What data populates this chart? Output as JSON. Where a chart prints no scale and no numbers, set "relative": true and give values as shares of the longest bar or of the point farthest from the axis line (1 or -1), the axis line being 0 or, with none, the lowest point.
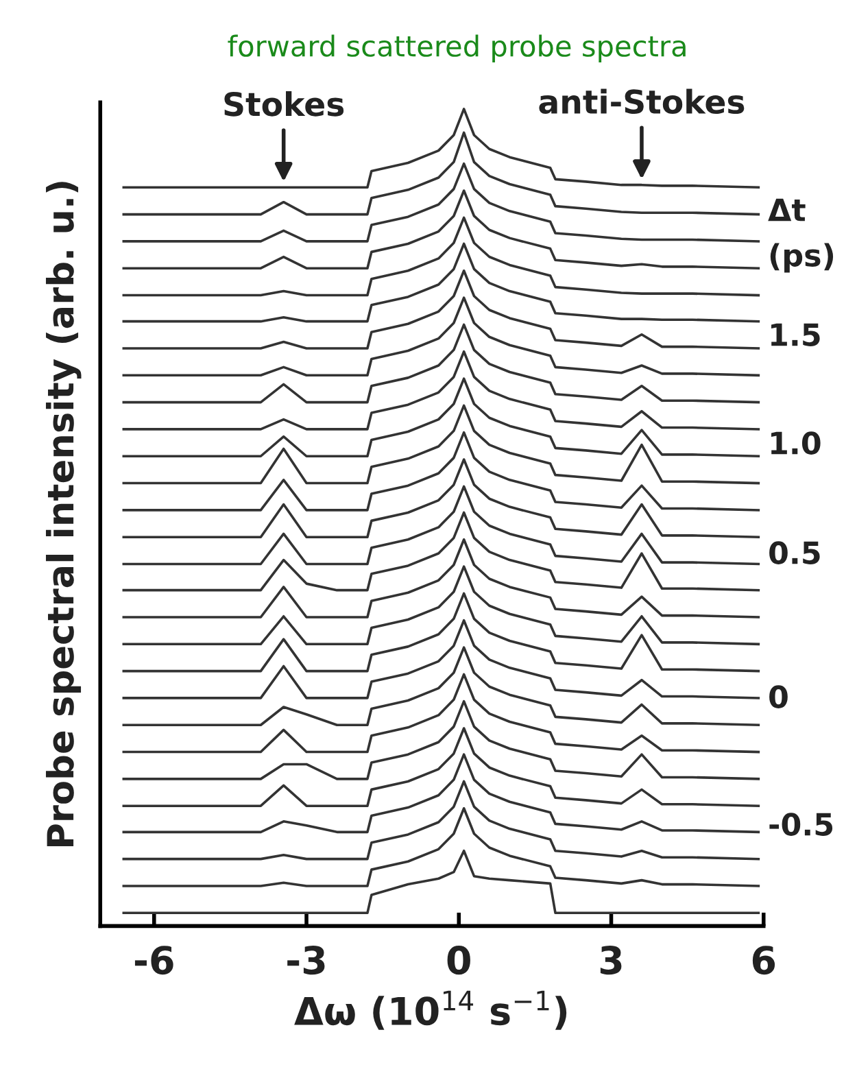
{
  "chart_data": {
    "type": "line",
    "title": "forward scattered probe spectra",
    "xlabel": "Δω (10$^{14}$ s$^{−1}$)",
    "ylabel": "Probe spectral intensity (arb. u.)",
    "relative": true,
    "x": [
      -6.6,
      -4.6,
      -3.9,
      -3.45,
      -3.0,
      -2.4,
      -1.8,
      -1.72,
      -1.0,
      -0.4,
      -0.1,
      0.1,
      0.3,
      0.6,
      1.0,
      1.8,
      1.9,
      2.5,
      3.2,
      3.6,
      4.0,
      4.6,
      5.9
    ],
    "xlim": [
      -7.06,
      6
    ],
    "xticks": [
      -6,
      -3,
      0,
      3,
      6
    ],
    "annotations": [
      {
        "text": "Stokes",
        "x": -3.45,
        "y": 0.904
      },
      {
        "text": "anti-Stokes",
        "x": 3.6,
        "y": 0.907
      },
      "Δt",
      "(ps)",
      "1.5",
      "1.0",
      "0.5",
      "0",
      "-0.5"
    ],
    "series": [
      {
        "color": "#333333",
        "values": [
          0.904,
          0.904,
          0.904,
          0.904,
          0.904,
          0.904,
          0.904,
          0.924,
          0.934,
          0.949,
          0.968,
          1.0,
          0.968,
          0.951,
          0.941,
          0.928,
          0.914,
          0.911,
          0.907,
          0.907,
          0.906,
          0.906,
          0.904
        ]
      },
      {
        "color": "#333333",
        "values": [
          0.871,
          0.871,
          0.871,
          0.886,
          0.871,
          0.871,
          0.871,
          0.891,
          0.901,
          0.916,
          0.935,
          0.971,
          0.935,
          0.918,
          0.908,
          0.895,
          0.881,
          0.878,
          0.874,
          0.873,
          0.873,
          0.873,
          0.871
        ]
      },
      {
        "color": "#333333",
        "values": [
          0.838,
          0.838,
          0.838,
          0.851,
          0.838,
          0.838,
          0.838,
          0.858,
          0.868,
          0.883,
          0.902,
          0.933,
          0.902,
          0.885,
          0.875,
          0.862,
          0.848,
          0.845,
          0.841,
          0.84,
          0.84,
          0.84,
          0.838
        ]
      },
      {
        "color": "#333333",
        "values": [
          0.805,
          0.805,
          0.805,
          0.819,
          0.805,
          0.805,
          0.805,
          0.825,
          0.835,
          0.85,
          0.869,
          0.9,
          0.869,
          0.852,
          0.842,
          0.829,
          0.815,
          0.812,
          0.808,
          0.81,
          0.807,
          0.807,
          0.805
        ]
      },
      {
        "color": "#333333",
        "values": [
          0.772,
          0.772,
          0.772,
          0.777,
          0.772,
          0.772,
          0.772,
          0.792,
          0.802,
          0.817,
          0.836,
          0.867,
          0.836,
          0.819,
          0.809,
          0.796,
          0.782,
          0.779,
          0.775,
          0.774,
          0.774,
          0.774,
          0.772
        ]
      },
      {
        "color": "#333333",
        "values": [
          0.74,
          0.74,
          0.74,
          0.745,
          0.74,
          0.74,
          0.74,
          0.76,
          0.77,
          0.785,
          0.804,
          0.835,
          0.804,
          0.787,
          0.777,
          0.764,
          0.75,
          0.747,
          0.743,
          0.743,
          0.742,
          0.742,
          0.74
        ]
      },
      {
        "color": "#333333",
        "values": [
          0.707,
          0.707,
          0.707,
          0.715,
          0.707,
          0.707,
          0.707,
          0.727,
          0.737,
          0.752,
          0.771,
          0.802,
          0.771,
          0.754,
          0.744,
          0.731,
          0.717,
          0.714,
          0.71,
          0.724,
          0.709,
          0.709,
          0.707
        ]
      },
      {
        "color": "#333333",
        "values": [
          0.674,
          0.674,
          0.674,
          0.684,
          0.674,
          0.674,
          0.674,
          0.694,
          0.704,
          0.719,
          0.738,
          0.769,
          0.738,
          0.721,
          0.711,
          0.698,
          0.684,
          0.681,
          0.677,
          0.686,
          0.676,
          0.676,
          0.674
        ]
      },
      {
        "color": "#333333",
        "values": [
          0.641,
          0.641,
          0.641,
          0.663,
          0.641,
          0.641,
          0.641,
          0.661,
          0.671,
          0.686,
          0.705,
          0.736,
          0.705,
          0.688,
          0.678,
          0.665,
          0.651,
          0.648,
          0.644,
          0.661,
          0.643,
          0.643,
          0.641
        ]
      },
      {
        "color": "#333333",
        "values": [
          0.608,
          0.608,
          0.608,
          0.62,
          0.608,
          0.608,
          0.608,
          0.628,
          0.638,
          0.653,
          0.672,
          0.703,
          0.672,
          0.655,
          0.645,
          0.632,
          0.618,
          0.615,
          0.611,
          0.63,
          0.61,
          0.61,
          0.608
        ]
      },
      {
        "color": "#333333",
        "values": [
          0.575,
          0.575,
          0.575,
          0.599,
          0.575,
          0.575,
          0.575,
          0.595,
          0.605,
          0.62,
          0.639,
          0.67,
          0.639,
          0.622,
          0.612,
          0.599,
          0.585,
          0.582,
          0.578,
          0.607,
          0.577,
          0.577,
          0.575
        ]
      },
      {
        "color": "#333333",
        "values": [
          0.542,
          0.542,
          0.542,
          0.584,
          0.542,
          0.542,
          0.542,
          0.562,
          0.572,
          0.587,
          0.606,
          0.637,
          0.606,
          0.589,
          0.579,
          0.566,
          0.552,
          0.549,
          0.545,
          0.589,
          0.544,
          0.544,
          0.542
        ]
      },
      {
        "color": "#333333",
        "values": [
          0.509,
          0.509,
          0.509,
          0.546,
          0.509,
          0.509,
          0.509,
          0.529,
          0.539,
          0.554,
          0.573,
          0.604,
          0.573,
          0.556,
          0.546,
          0.533,
          0.519,
          0.516,
          0.512,
          0.539,
          0.511,
          0.511,
          0.509
        ]
      },
      {
        "color": "#333333",
        "values": [
          0.476,
          0.476,
          0.476,
          0.516,
          0.476,
          0.476,
          0.476,
          0.496,
          0.506,
          0.521,
          0.54,
          0.571,
          0.54,
          0.523,
          0.513,
          0.5,
          0.486,
          0.483,
          0.479,
          0.516,
          0.478,
          0.478,
          0.476
        ]
      },
      {
        "color": "#333333",
        "values": [
          0.443,
          0.443,
          0.443,
          0.48,
          0.443,
          0.443,
          0.443,
          0.463,
          0.473,
          0.488,
          0.507,
          0.538,
          0.507,
          0.49,
          0.48,
          0.467,
          0.453,
          0.45,
          0.446,
          0.48,
          0.445,
          0.445,
          0.443
        ]
      },
      {
        "color": "#333333",
        "values": [
          0.411,
          0.411,
          0.411,
          0.448,
          0.419,
          0.411,
          0.411,
          0.431,
          0.441,
          0.456,
          0.475,
          0.506,
          0.475,
          0.458,
          0.448,
          0.435,
          0.421,
          0.418,
          0.414,
          0.456,
          0.413,
          0.413,
          0.411
        ]
      },
      {
        "color": "#333333",
        "values": [
          0.378,
          0.378,
          0.378,
          0.415,
          0.378,
          0.378,
          0.378,
          0.398,
          0.408,
          0.423,
          0.442,
          0.473,
          0.442,
          0.425,
          0.415,
          0.402,
          0.388,
          0.385,
          0.381,
          0.403,
          0.38,
          0.38,
          0.378
        ]
      },
      {
        "color": "#333333",
        "values": [
          0.345,
          0.345,
          0.345,
          0.379,
          0.345,
          0.345,
          0.345,
          0.365,
          0.375,
          0.39,
          0.409,
          0.44,
          0.409,
          0.392,
          0.382,
          0.369,
          0.355,
          0.352,
          0.348,
          0.379,
          0.347,
          0.347,
          0.345
        ]
      },
      {
        "color": "#333333",
        "values": [
          0.312,
          0.312,
          0.312,
          0.351,
          0.312,
          0.312,
          0.312,
          0.332,
          0.342,
          0.357,
          0.376,
          0.407,
          0.376,
          0.359,
          0.349,
          0.336,
          0.322,
          0.319,
          0.315,
          0.356,
          0.314,
          0.314,
          0.312
        ]
      },
      {
        "color": "#333333",
        "values": [
          0.279,
          0.279,
          0.279,
          0.318,
          0.279,
          0.279,
          0.279,
          0.299,
          0.309,
          0.324,
          0.343,
          0.374,
          0.343,
          0.326,
          0.316,
          0.303,
          0.289,
          0.286,
          0.282,
          0.301,
          0.281,
          0.281,
          0.279
        ]
      },
      {
        "color": "#333333",
        "values": [
          0.246,
          0.246,
          0.246,
          0.268,
          0.259,
          0.246,
          0.246,
          0.266,
          0.276,
          0.291,
          0.31,
          0.341,
          0.31,
          0.293,
          0.283,
          0.27,
          0.256,
          0.253,
          0.249,
          0.271,
          0.248,
          0.248,
          0.246
        ]
      },
      {
        "color": "#333333",
        "values": [
          0.213,
          0.213,
          0.213,
          0.24,
          0.213,
          0.213,
          0.213,
          0.233,
          0.243,
          0.258,
          0.277,
          0.308,
          0.277,
          0.26,
          0.25,
          0.237,
          0.223,
          0.22,
          0.216,
          0.233,
          0.215,
          0.215,
          0.213
        ]
      },
      {
        "color": "#333333",
        "values": [
          0.18,
          0.18,
          0.18,
          0.198,
          0.198,
          0.18,
          0.18,
          0.2,
          0.21,
          0.225,
          0.244,
          0.275,
          0.244,
          0.227,
          0.217,
          0.204,
          0.19,
          0.187,
          0.183,
          0.21,
          0.182,
          0.182,
          0.18
        ]
      },
      {
        "color": "#333333",
        "values": [
          0.147,
          0.147,
          0.147,
          0.172,
          0.147,
          0.147,
          0.147,
          0.167,
          0.177,
          0.192,
          0.211,
          0.242,
          0.211,
          0.194,
          0.184,
          0.171,
          0.157,
          0.154,
          0.15,
          0.167,
          0.149,
          0.149,
          0.147
        ]
      },
      {
        "color": "#333333",
        "values": [
          0.115,
          0.115,
          0.115,
          0.128,
          0.123,
          0.115,
          0.115,
          0.135,
          0.145,
          0.16,
          0.179,
          0.21,
          0.179,
          0.162,
          0.152,
          0.139,
          0.125,
          0.122,
          0.118,
          0.128,
          0.117,
          0.117,
          0.115
        ]
      },
      {
        "color": "#333333",
        "values": [
          0.082,
          0.082,
          0.082,
          0.087,
          0.082,
          0.082,
          0.082,
          0.102,
          0.112,
          0.127,
          0.146,
          0.177,
          0.146,
          0.129,
          0.119,
          0.106,
          0.092,
          0.089,
          0.085,
          0.092,
          0.084,
          0.084,
          0.082
        ]
      },
      {
        "color": "#333333",
        "values": [
          0.049,
          0.049,
          0.049,
          0.053,
          0.049,
          0.049,
          0.049,
          0.069,
          0.079,
          0.094,
          0.113,
          0.144,
          0.113,
          0.096,
          0.086,
          0.073,
          0.059,
          0.056,
          0.052,
          0.056,
          0.051,
          0.051,
          0.049
        ]
      },
      {
        "color": "#333333",
        "values": [
          0.016,
          0.016,
          0.016,
          0.016,
          0.016,
          0.016,
          0.016,
          0.038,
          0.051,
          0.058,
          0.066,
          0.092,
          0.061,
          0.058,
          0.056,
          0.052,
          0.016,
          0.016,
          0.016,
          0.016,
          0.016,
          0.016,
          0.016
        ]
      }
    ]
  }
}
